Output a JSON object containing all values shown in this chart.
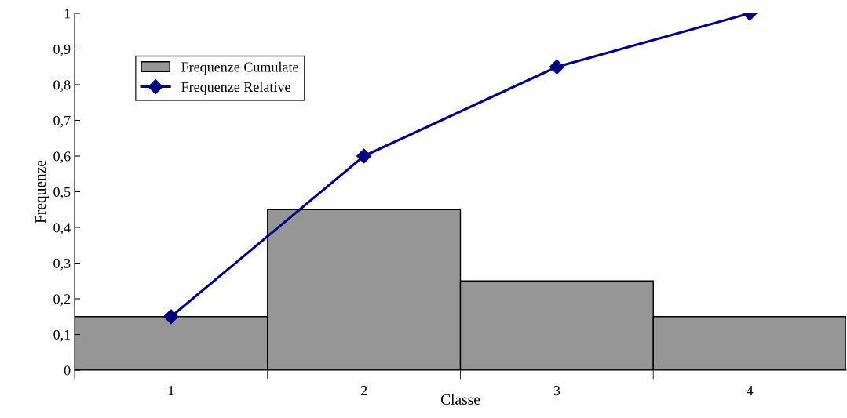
{
  "chart_data": {
    "type": "bar",
    "xlabel": "Classe",
    "ylabel": "Frequenze",
    "categories": [
      "1",
      "2",
      "3",
      "4"
    ],
    "series": [
      {
        "name": "Frequenze Cumulate",
        "color": "#969696",
        "values": [
          0.15,
          0.45,
          0.25,
          0.15
        ]
      },
      {
        "name": "Frequenze Relative",
        "type": "line",
        "color": "#000080",
        "values": [
          0.15,
          0.6,
          0.85,
          1.0
        ]
      }
    ],
    "ylim": [
      0,
      1
    ],
    "yticks": [
      0,
      {
        "value": 0.1,
        "label": "0,1"
      },
      {
        "value": 0.2,
        "label": "0,2"
      },
      {
        "value": 0.3,
        "label": "0,3"
      },
      {
        "value": 0.4,
        "label": "0,4"
      },
      {
        "value": 0.5,
        "label": "0,5"
      },
      {
        "value": 0.6,
        "label": "0,6"
      },
      {
        "value": 0.7,
        "label": "0,7"
      },
      {
        "value": 0.8,
        "label": "0,8"
      },
      {
        "value": 0.9,
        "label": "0,9"
      },
      1
    ],
    "marker": "diamond",
    "grid": false,
    "legend": "top left"
  }
}
